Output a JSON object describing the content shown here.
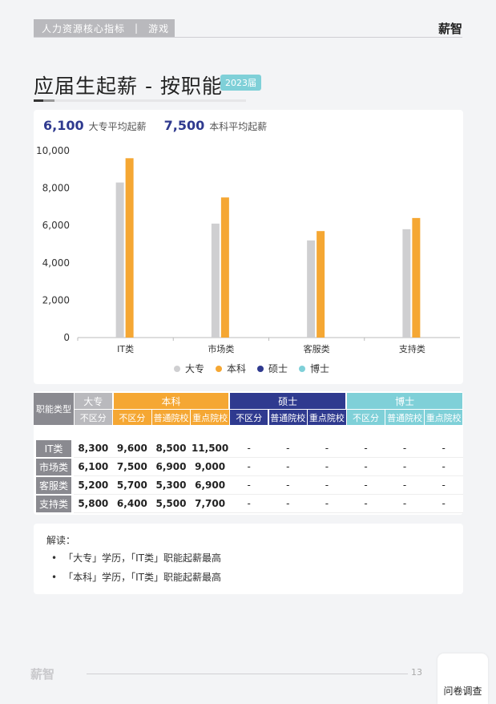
{
  "header": {
    "category": "人力资源核心指标",
    "separator": "|",
    "industry": "游戏",
    "brand": "薪智"
  },
  "title": "应届生起薪 - 按职能",
  "year_badge": "2023届",
  "summary": [
    {
      "value": "6,100",
      "label": "大专平均起薪"
    },
    {
      "value": "7,500",
      "label": "本科平均起薪"
    }
  ],
  "chart_data": {
    "type": "bar",
    "categories": [
      "IT类",
      "市场类",
      "客服类",
      "支持类"
    ],
    "series": [
      {
        "name": "大专",
        "color": "#cfcfd1",
        "values": [
          8300,
          6100,
          5200,
          5800
        ]
      },
      {
        "name": "本科",
        "color": "#f5a733",
        "values": [
          9600,
          7500,
          5700,
          6400
        ]
      },
      {
        "name": "硕士",
        "color": "#2f3a8f",
        "values": [
          null,
          null,
          null,
          null
        ]
      },
      {
        "name": "博士",
        "color": "#7fd0d8",
        "values": [
          null,
          null,
          null,
          null
        ]
      }
    ],
    "yticks": [
      "10,000",
      "8,000",
      "6,000",
      "4,000",
      "2,000",
      "0"
    ],
    "ylim": [
      0,
      10000
    ]
  },
  "table": {
    "corner": "职能类型",
    "groups": [
      {
        "label": "大专",
        "color": "#b9b9bd",
        "subs": [
          "不区分"
        ]
      },
      {
        "label": "本科",
        "color": "#f5a733",
        "subs": [
          "不区分",
          "普通院校",
          "重点院校"
        ]
      },
      {
        "label": "硕士",
        "color": "#2f3a8f",
        "subs": [
          "不区分",
          "普通院校",
          "重点院校"
        ]
      },
      {
        "label": "博士",
        "color": "#7fd0d8",
        "subs": [
          "不区分",
          "普通院校",
          "重点院校"
        ]
      }
    ],
    "rows": [
      {
        "label": "IT类",
        "values": [
          "8,300",
          "9,600",
          "8,500",
          "11,500",
          "-",
          "-",
          "-",
          "-",
          "-",
          "-"
        ]
      },
      {
        "label": "市场类",
        "values": [
          "6,100",
          "7,500",
          "6,900",
          "9,000",
          "-",
          "-",
          "-",
          "-",
          "-",
          "-"
        ]
      },
      {
        "label": "客服类",
        "values": [
          "5,200",
          "5,700",
          "5,300",
          "6,900",
          "-",
          "-",
          "-",
          "-",
          "-",
          "-"
        ]
      },
      {
        "label": "支持类",
        "values": [
          "5,800",
          "6,400",
          "5,500",
          "7,700",
          "-",
          "-",
          "-",
          "-",
          "-",
          "-"
        ]
      }
    ]
  },
  "notes": {
    "title": "解读：",
    "items": [
      "「大专」学历，「IT类」职能起薪最高",
      "「本科」学历，「IT类」职能起薪最高"
    ]
  },
  "footer": {
    "logo": "薪智",
    "page": "13",
    "survey": "问卷调查"
  }
}
